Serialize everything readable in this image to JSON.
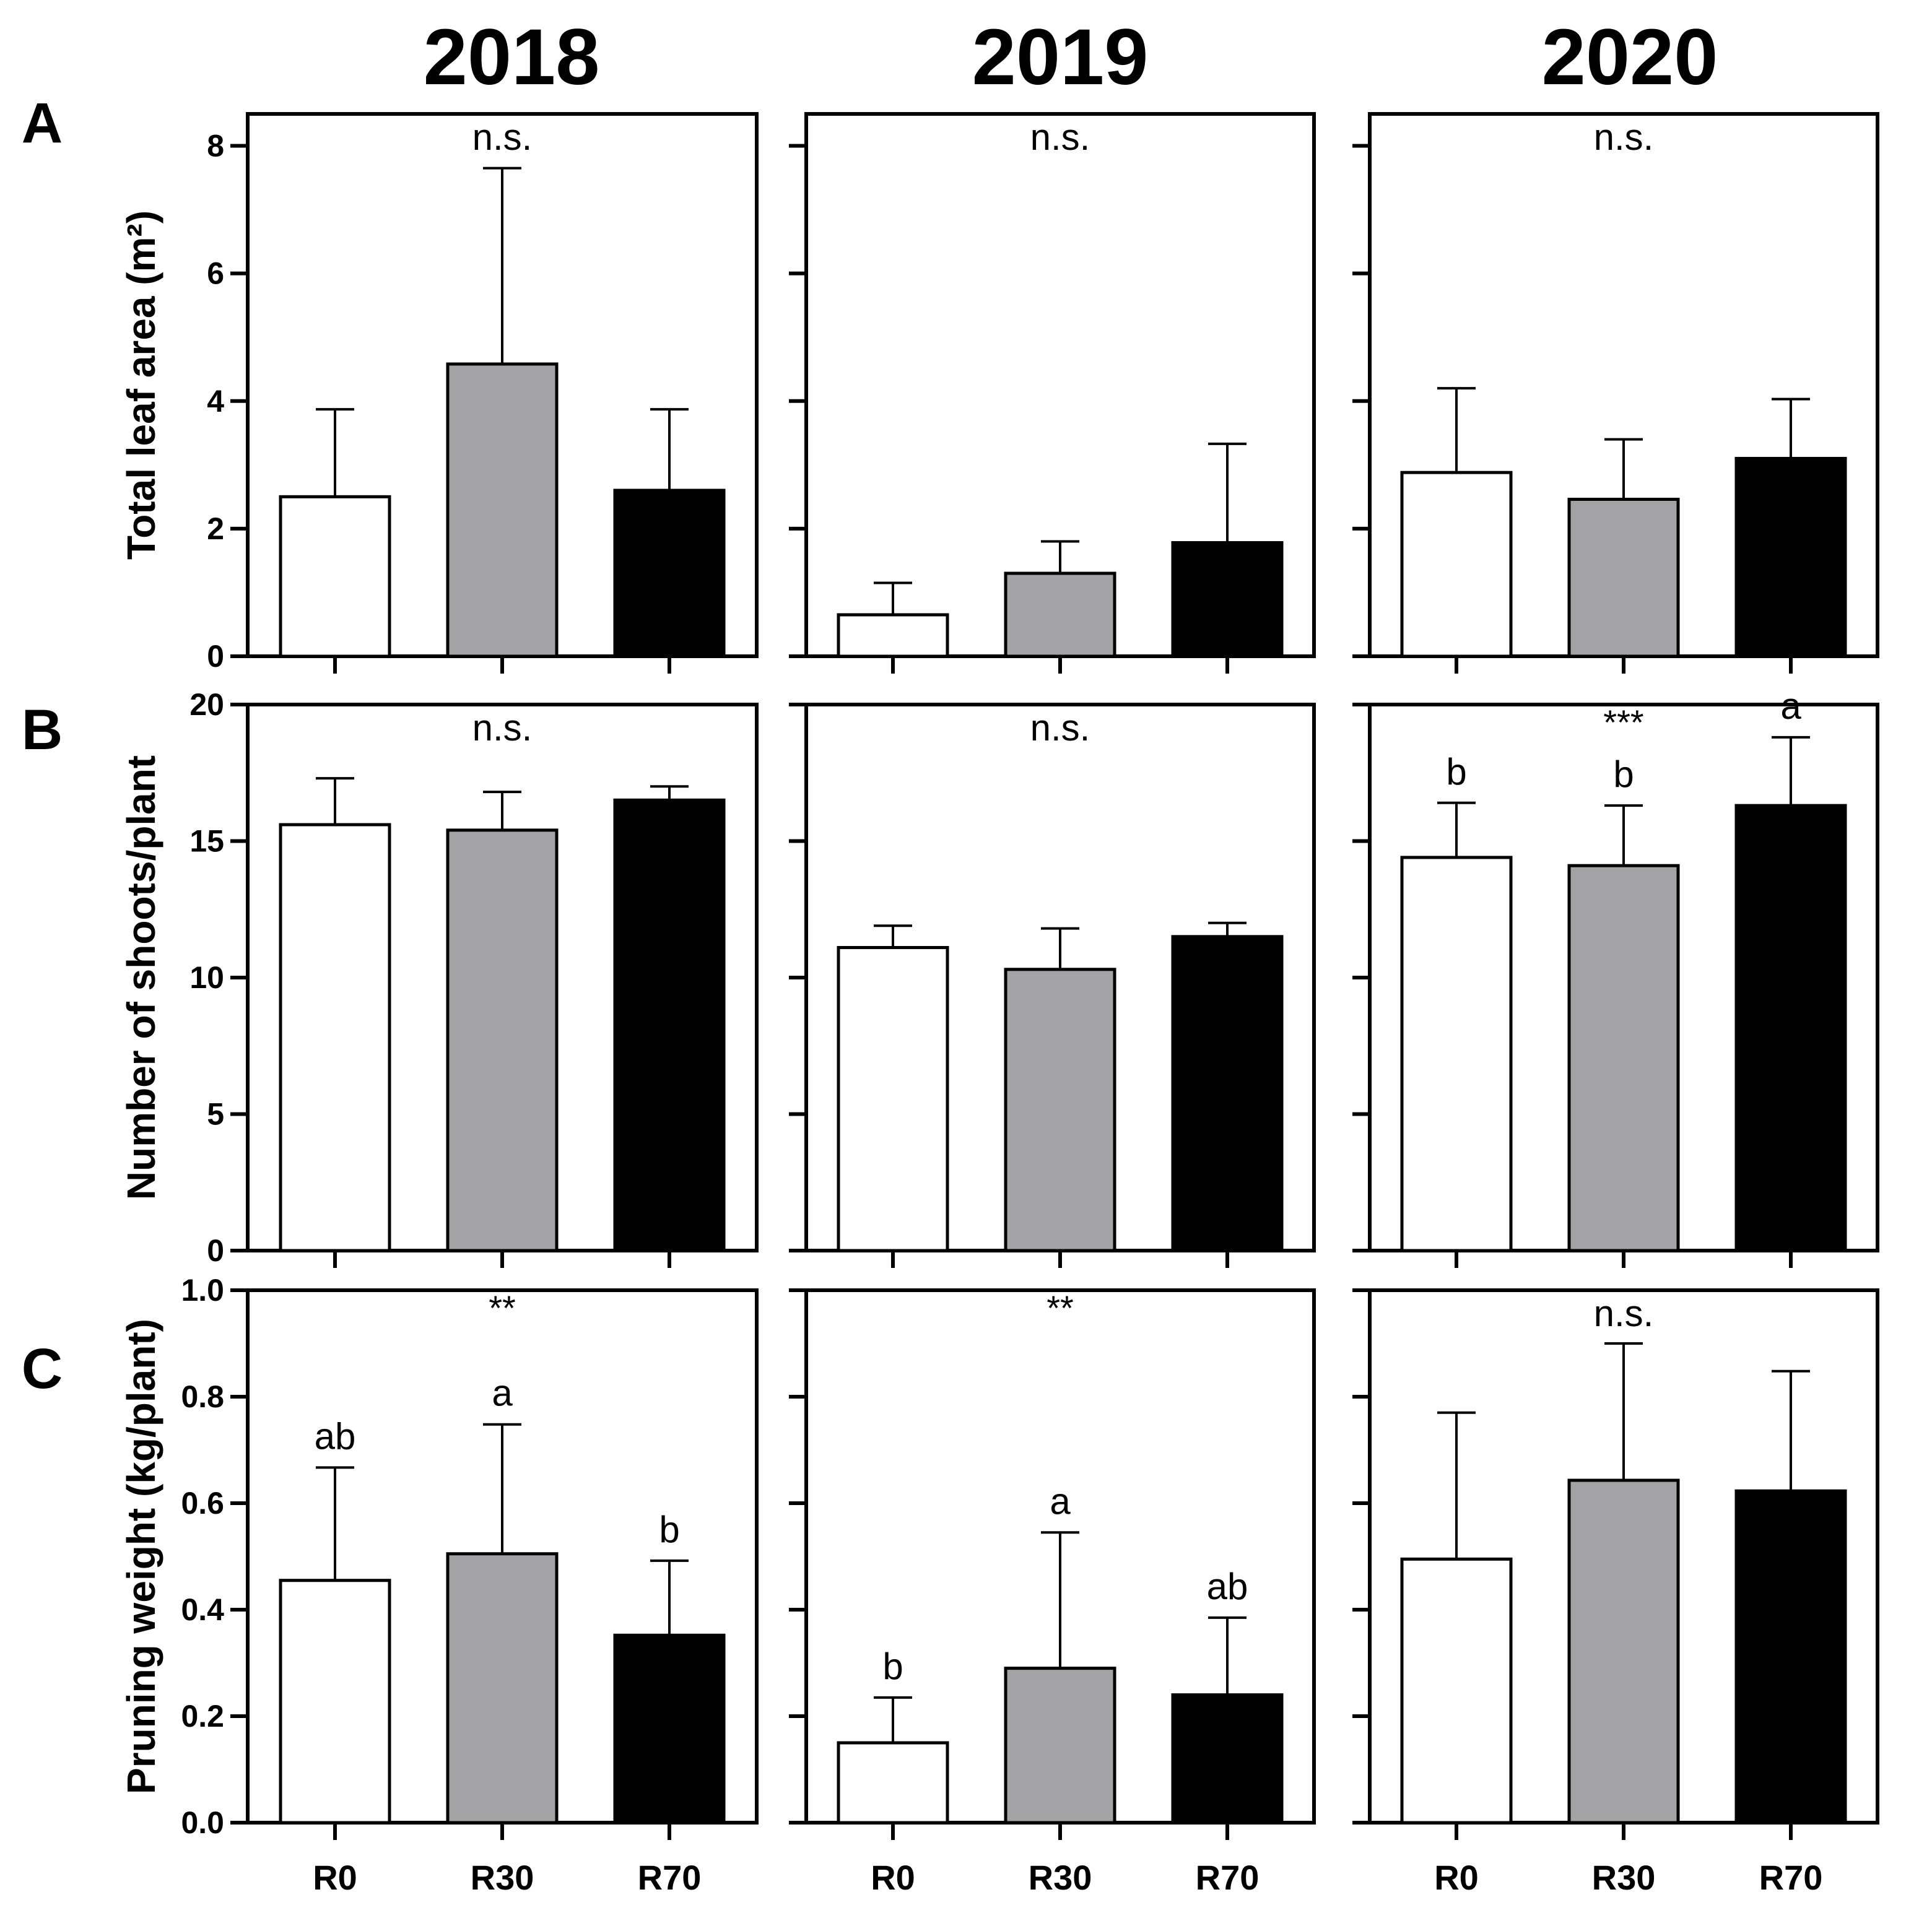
{
  "chart_data": {
    "type": "bar",
    "layout": "3x3 grid of bar charts",
    "categories": [
      "R0",
      "R30",
      "R70"
    ],
    "years": [
      "2018",
      "2019",
      "2020"
    ],
    "colors": {
      "R0": "#ffffff",
      "R30": "#a3a3a6",
      "R70": "#000000",
      "axis": "#000000"
    },
    "rows": [
      {
        "letter": "A",
        "ylabel": "Total leaf area (m²)",
        "ylim": [
          0,
          8.5
        ],
        "ticks": [
          0,
          2,
          4,
          6,
          8
        ],
        "tick_labels": [
          "0",
          "2",
          "4",
          "6",
          "8"
        ],
        "panels": [
          {
            "year": "2018",
            "significance": "n.s.",
            "values": [
              2.5,
              4.58,
              2.6
            ],
            "errors": [
              1.37,
              3.07,
              1.27
            ],
            "letters": [
              "",
              "",
              ""
            ]
          },
          {
            "year": "2019",
            "significance": "n.s.",
            "values": [
              0.65,
              1.3,
              1.78
            ],
            "errors": [
              0.5,
              0.5,
              1.55
            ],
            "letters": [
              "",
              "",
              ""
            ]
          },
          {
            "year": "2020",
            "significance": "n.s.",
            "values": [
              2.88,
              2.46,
              3.1
            ],
            "errors": [
              1.32,
              0.94,
              0.93
            ],
            "letters": [
              "",
              "",
              ""
            ]
          }
        ]
      },
      {
        "letter": "B",
        "ylabel": "Number of shoots/plant",
        "ylim": [
          0,
          20
        ],
        "ticks": [
          0,
          5,
          10,
          15,
          20
        ],
        "tick_labels": [
          "0",
          "5",
          "10",
          "15",
          "20"
        ],
        "panels": [
          {
            "year": "2018",
            "significance": "n.s.",
            "values": [
              15.6,
              15.4,
              16.5
            ],
            "errors": [
              1.7,
              1.4,
              0.5
            ],
            "letters": [
              "",
              "",
              ""
            ]
          },
          {
            "year": "2019",
            "significance": "n.s.",
            "values": [
              11.1,
              10.3,
              11.5
            ],
            "errors": [
              0.8,
              1.5,
              0.5
            ],
            "letters": [
              "",
              "",
              ""
            ]
          },
          {
            "year": "2020",
            "significance": "***",
            "values": [
              14.4,
              14.1,
              16.3
            ],
            "errors": [
              2.0,
              2.2,
              2.5
            ],
            "letters": [
              "b",
              "b",
              "a"
            ]
          }
        ]
      },
      {
        "letter": "C",
        "ylabel": "Pruning weight (kg/plant)",
        "ylim": [
          0,
          1.0
        ],
        "ticks": [
          0,
          0.2,
          0.4,
          0.6,
          0.8,
          1.0
        ],
        "tick_labels": [
          "0.0",
          "0.2",
          "0.4",
          "0.6",
          "0.8",
          "1.0"
        ],
        "panels": [
          {
            "year": "2018",
            "significance": "**",
            "values": [
              0.455,
              0.505,
              0.352
            ],
            "errors": [
              0.212,
              0.243,
              0.14
            ],
            "letters": [
              "ab",
              "a",
              "b"
            ]
          },
          {
            "year": "2019",
            "significance": "**",
            "values": [
              0.15,
              0.29,
              0.24
            ],
            "errors": [
              0.085,
              0.255,
              0.145
            ],
            "letters": [
              "b",
              "a",
              "ab"
            ]
          },
          {
            "year": "2020",
            "significance": "n.s.",
            "values": [
              0.495,
              0.643,
              0.623
            ],
            "errors": [
              0.275,
              0.257,
              0.225
            ],
            "letters": [
              "",
              "",
              ""
            ]
          }
        ]
      }
    ]
  }
}
